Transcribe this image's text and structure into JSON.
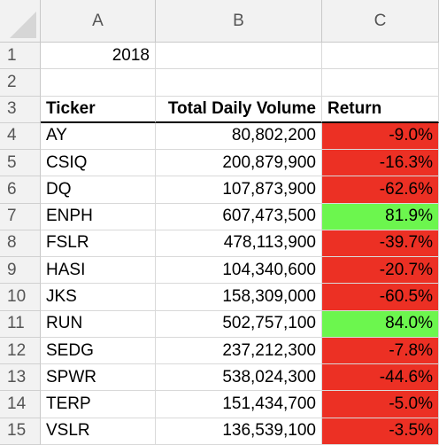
{
  "sheet": {
    "columns": [
      "A",
      "B",
      "C"
    ],
    "row_numbers": [
      "1",
      "2",
      "3",
      "4",
      "5",
      "6",
      "7",
      "8",
      "9",
      "10",
      "11",
      "12",
      "13",
      "14",
      "15"
    ],
    "year": "2018",
    "headers": {
      "ticker": "Ticker",
      "volume": "Total Daily Volume",
      "return": "Return"
    },
    "rows": [
      {
        "ticker": "AY",
        "volume": "80,802,200",
        "return": "-9.0%",
        "status": "negative"
      },
      {
        "ticker": "CSIQ",
        "volume": "200,879,900",
        "return": "-16.3%",
        "status": "negative"
      },
      {
        "ticker": "DQ",
        "volume": "107,873,900",
        "return": "-62.6%",
        "status": "negative"
      },
      {
        "ticker": "ENPH",
        "volume": "607,473,500",
        "return": "81.9%",
        "status": "positive"
      },
      {
        "ticker": "FSLR",
        "volume": "478,113,900",
        "return": "-39.7%",
        "status": "negative"
      },
      {
        "ticker": "HASI",
        "volume": "104,340,600",
        "return": "-20.7%",
        "status": "negative"
      },
      {
        "ticker": "JKS",
        "volume": "158,309,000",
        "return": "-60.5%",
        "status": "negative"
      },
      {
        "ticker": "RUN",
        "volume": "502,757,100",
        "return": "84.0%",
        "status": "positive"
      },
      {
        "ticker": "SEDG",
        "volume": "237,212,300",
        "return": "-7.8%",
        "status": "negative"
      },
      {
        "ticker": "SPWR",
        "volume": "538,024,300",
        "return": "-44.6%",
        "status": "negative"
      },
      {
        "ticker": "TERP",
        "volume": "151,434,700",
        "return": "-5.0%",
        "status": "negative"
      },
      {
        "ticker": "VSLR",
        "volume": "136,539,100",
        "return": "-3.5%",
        "status": "negative"
      }
    ]
  },
  "colors": {
    "negative": "#ec3024",
    "positive": "#6cf64e",
    "header_bg": "#f2f2f2",
    "gridline": "#d9d9d9"
  }
}
